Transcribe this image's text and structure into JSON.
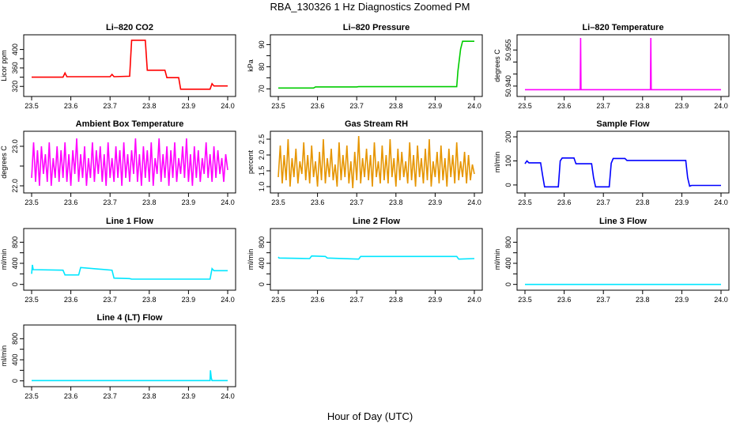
{
  "page": {
    "title": "RBA_130326  1 Hz Diagnostics Zoomed PM",
    "xlabel": "Hour of Day (UTC)"
  },
  "chart_data": [
    {
      "id": "co2",
      "type": "line",
      "title": "Li–820 CO2",
      "ylabel": "Licor ppm",
      "color": "#ff0000",
      "xlim": [
        23.5,
        24.0
      ],
      "ylim": [
        305,
        425
      ],
      "xticks": [
        "23.5",
        "23.6",
        "23.7",
        "23.8",
        "23.9",
        "24.0"
      ],
      "yticks": [
        "320",
        "340",
        "360",
        "380",
        "400"
      ],
      "yticks_shown": [
        "320",
        "360",
        "400"
      ],
      "series": [
        {
          "x": [
            23.5,
            23.58,
            23.585,
            23.59,
            23.7,
            23.705,
            23.71,
            23.75,
            23.755,
            23.79,
            23.795,
            23.84,
            23.845,
            23.875,
            23.88,
            23.955,
            23.96,
            23.965,
            24.0
          ],
          "y": [
            340,
            340,
            349,
            341,
            341,
            346,
            341,
            342,
            420,
            420,
            355,
            355,
            339,
            339,
            314,
            314,
            326,
            321,
            321
          ]
        }
      ]
    },
    {
      "id": "pressure",
      "type": "line",
      "title": "Li–820 Pressure",
      "ylabel": "kPa",
      "color": "#00cc00",
      "xlim": [
        23.5,
        24.0
      ],
      "ylim": [
        68,
        93
      ],
      "xticks": [
        "23.5",
        "23.6",
        "23.7",
        "23.8",
        "23.9",
        "24.0"
      ],
      "yticks": [
        "70",
        "75",
        "80",
        "85",
        "90"
      ],
      "yticks_shown": [
        "70",
        "80",
        "90"
      ],
      "series": [
        {
          "x": [
            23.5,
            23.59,
            23.595,
            23.7,
            23.705,
            23.955,
            23.958,
            23.965,
            23.97,
            24.0
          ],
          "y": [
            70.4,
            70.4,
            70.9,
            70.9,
            71.0,
            71.0,
            78,
            88,
            91.5,
            91.5
          ]
        }
      ]
    },
    {
      "id": "temperature",
      "type": "line",
      "title": "Li–820 Temperature",
      "ylabel": "degrees C",
      "color": "#ff00ff",
      "xlim": [
        23.5,
        24.0
      ],
      "ylim": [
        50.937,
        50.96
      ],
      "xticks": [
        "23.5",
        "23.6",
        "23.7",
        "23.8",
        "23.9",
        "24.0"
      ],
      "yticks": [
        "50.940",
        "50.945",
        "50.950",
        "50.955"
      ],
      "yticks_shown": [
        "50.940",
        "50.955"
      ],
      "series": [
        {
          "x": [
            23.5,
            23.641,
            23.642,
            23.643,
            23.644,
            23.82,
            23.821,
            23.822,
            23.823,
            24.0
          ],
          "y": [
            50.9385,
            50.9385,
            50.96,
            50.9385,
            50.9385,
            50.9385,
            50.96,
            50.9385,
            50.9385,
            50.9385
          ]
        }
      ]
    },
    {
      "id": "ambient",
      "type": "line",
      "title": "Ambient Box Temperature",
      "ylabel": "degrees C",
      "color": "#ff00ff",
      "xlim": [
        23.5,
        24.0
      ],
      "ylim": [
        21.9,
        23.3
      ],
      "xticks": [
        "23.5",
        "23.6",
        "23.7",
        "23.8",
        "23.9",
        "24.0"
      ],
      "yticks": [
        "22.0",
        "22.5",
        "23.0"
      ],
      "yticks_shown": [
        "22.0",
        "23.0"
      ],
      "series": [
        {
          "x": [
            23.5,
            23.505,
            23.51,
            23.515,
            23.52,
            23.525,
            23.53,
            23.535,
            23.54,
            23.545,
            23.55,
            23.555,
            23.56,
            23.565,
            23.57,
            23.575,
            23.58,
            23.585,
            23.59,
            23.595,
            23.6,
            23.605,
            23.61,
            23.615,
            23.62,
            23.625,
            23.63,
            23.635,
            23.64,
            23.645,
            23.65,
            23.655,
            23.66,
            23.665,
            23.67,
            23.675,
            23.68,
            23.685,
            23.69,
            23.695,
            23.7,
            23.705,
            23.71,
            23.715,
            23.72,
            23.725,
            23.73,
            23.735,
            23.74,
            23.745,
            23.75,
            23.755,
            23.76,
            23.765,
            23.77,
            23.775,
            23.78,
            23.785,
            23.79,
            23.795,
            23.8,
            23.805,
            23.81,
            23.815,
            23.82,
            23.825,
            23.83,
            23.835,
            23.84,
            23.845,
            23.85,
            23.855,
            23.86,
            23.865,
            23.87,
            23.875,
            23.88,
            23.885,
            23.89,
            23.895,
            23.9,
            23.905,
            23.91,
            23.915,
            23.92,
            23.925,
            23.93,
            23.935,
            23.94,
            23.945,
            23.95,
            23.955,
            23.96,
            23.965,
            23.97,
            23.975,
            23.98,
            23.985,
            23.99,
            23.995,
            24.0
          ],
          "y": [
            22.2,
            23.1,
            22.1,
            22.9,
            22.0,
            23.0,
            22.3,
            22.8,
            22.1,
            23.1,
            22.0,
            22.7,
            22.2,
            23.0,
            22.1,
            22.9,
            22.2,
            23.1,
            22.1,
            22.8,
            22.0,
            22.9,
            22.3,
            23.2,
            22.1,
            22.8,
            22.2,
            23.0,
            22.0,
            22.7,
            22.2,
            23.1,
            22.1,
            22.9,
            22.3,
            23.0,
            22.1,
            22.8,
            22.0,
            23.1,
            22.2,
            22.7,
            22.1,
            23.0,
            22.2,
            22.9,
            22.0,
            23.1,
            22.2,
            22.8,
            22.1,
            22.9,
            22.3,
            23.2,
            22.1,
            22.8,
            22.0,
            23.0,
            22.2,
            22.9,
            22.1,
            23.1,
            22.0,
            22.7,
            22.3,
            23.2,
            22.1,
            22.8,
            22.2,
            23.0,
            22.0,
            22.9,
            22.2,
            23.1,
            22.1,
            22.7,
            22.3,
            23.0,
            22.2,
            23.2,
            22.1,
            22.8,
            22.0,
            23.0,
            22.2,
            22.9,
            22.1,
            22.7,
            22.3,
            23.1,
            22.2,
            22.8,
            22.1,
            23.0,
            22.2,
            22.9,
            22.3,
            22.7,
            22.1,
            22.8,
            22.4
          ]
        }
      ]
    },
    {
      "id": "rh",
      "type": "line",
      "title": "Gas Stream RH",
      "ylabel": "percent",
      "color": "#e69500",
      "xlim": [
        23.5,
        24.0
      ],
      "ylim": [
        0.9,
        2.65
      ],
      "xticks": [
        "23.5",
        "23.6",
        "23.7",
        "23.8",
        "23.9",
        "24.0"
      ],
      "yticks": [
        "1.0",
        "1.5",
        "2.0",
        "2.5"
      ],
      "yticks_shown": [
        "1.0",
        "1.5",
        "2.0",
        "2.5"
      ],
      "series": [
        {
          "x": [
            23.5,
            23.505,
            23.51,
            23.515,
            23.52,
            23.525,
            23.53,
            23.535,
            23.54,
            23.545,
            23.55,
            23.555,
            23.56,
            23.565,
            23.57,
            23.575,
            23.58,
            23.585,
            23.59,
            23.595,
            23.6,
            23.605,
            23.61,
            23.615,
            23.62,
            23.625,
            23.63,
            23.635,
            23.64,
            23.645,
            23.65,
            23.655,
            23.66,
            23.665,
            23.67,
            23.675,
            23.68,
            23.685,
            23.69,
            23.695,
            23.7,
            23.705,
            23.71,
            23.715,
            23.72,
            23.725,
            23.73,
            23.735,
            23.74,
            23.745,
            23.75,
            23.755,
            23.76,
            23.765,
            23.77,
            23.775,
            23.78,
            23.785,
            23.79,
            23.795,
            23.8,
            23.805,
            23.81,
            23.815,
            23.82,
            23.825,
            23.83,
            23.835,
            23.84,
            23.845,
            23.85,
            23.855,
            23.86,
            23.865,
            23.87,
            23.875,
            23.88,
            23.885,
            23.89,
            23.895,
            23.9,
            23.905,
            23.91,
            23.915,
            23.92,
            23.925,
            23.93,
            23.935,
            23.94,
            23.945,
            23.95,
            23.955,
            23.96,
            23.965,
            23.97,
            23.975,
            23.98,
            23.985,
            23.99,
            23.995,
            24.0
          ],
          "y": [
            1.3,
            2.3,
            1.1,
            2.0,
            1.2,
            2.5,
            1.0,
            1.9,
            1.3,
            2.2,
            1.1,
            1.8,
            1.4,
            2.4,
            1.2,
            2.0,
            1.1,
            2.3,
            1.3,
            1.8,
            1.0,
            2.1,
            1.2,
            2.5,
            1.1,
            1.9,
            1.3,
            2.2,
            1.2,
            1.7,
            1.0,
            2.4,
            1.2,
            2.0,
            1.3,
            2.3,
            1.1,
            1.8,
            0.95,
            2.1,
            1.2,
            2.6,
            1.1,
            1.9,
            1.3,
            2.2,
            1.2,
            2.0,
            1.0,
            2.4,
            1.3,
            1.8,
            1.1,
            2.3,
            1.2,
            2.0,
            1.1,
            2.5,
            1.3,
            1.9,
            1.0,
            2.2,
            1.2,
            2.1,
            1.3,
            1.8,
            1.1,
            2.4,
            1.2,
            2.0,
            1.0,
            2.3,
            1.3,
            1.9,
            1.1,
            2.2,
            1.2,
            2.5,
            1.0,
            1.8,
            1.3,
            2.1,
            1.1,
            2.3,
            1.2,
            1.9,
            1.0,
            2.2,
            1.3,
            2.0,
            1.1,
            2.4,
            1.2,
            1.8,
            1.3,
            2.1,
            1.1,
            2.0,
            1.2,
            1.7,
            1.4
          ]
        }
      ]
    },
    {
      "id": "sampleflow",
      "type": "line",
      "title": "Sample Flow",
      "ylabel": "ml/min",
      "color": "#0000ff",
      "xlim": [
        23.5,
        24.0
      ],
      "ylim": [
        -20,
        210
      ],
      "xticks": [
        "23.5",
        "23.6",
        "23.7",
        "23.8",
        "23.9",
        "24.0"
      ],
      "yticks": [
        "0",
        "100",
        "200"
      ],
      "yticks_shown": [
        "0",
        "100",
        "200"
      ],
      "series": [
        {
          "x": [
            23.5,
            23.505,
            23.51,
            23.54,
            23.545,
            23.55,
            23.585,
            23.59,
            23.595,
            23.625,
            23.63,
            23.67,
            23.675,
            23.68,
            23.715,
            23.72,
            23.725,
            23.755,
            23.76,
            23.91,
            23.915,
            23.92,
            23.925,
            24.0
          ],
          "y": [
            88,
            100,
            92,
            92,
            40,
            -8,
            -8,
            100,
            112,
            112,
            88,
            88,
            30,
            -8,
            -8,
            90,
            110,
            110,
            102,
            102,
            30,
            -5,
            -2,
            -2
          ]
        }
      ]
    },
    {
      "id": "line1",
      "type": "line",
      "title": "Line 1 Flow",
      "ylabel": "ml/min",
      "color": "#00e6ff",
      "xlim": [
        23.5,
        24.0
      ],
      "ylim": [
        -50,
        1000
      ],
      "xticks": [
        "23.5",
        "23.6",
        "23.7",
        "23.8",
        "23.9",
        "24.0"
      ],
      "yticks": [
        "0",
        "200",
        "400",
        "600",
        "800"
      ],
      "yticks_shown": [
        "0",
        "400",
        "800"
      ],
      "series": [
        {
          "x": [
            23.5,
            23.502,
            23.504,
            23.58,
            23.585,
            23.62,
            23.625,
            23.705,
            23.71,
            23.75,
            23.755,
            23.955,
            23.96,
            23.965,
            24.0
          ],
          "y": [
            200,
            370,
            280,
            270,
            180,
            180,
            320,
            270,
            120,
            110,
            100,
            100,
            300,
            260,
            260
          ]
        }
      ]
    },
    {
      "id": "line2",
      "type": "line",
      "title": "Line 2 Flow",
      "ylabel": "ml/min",
      "color": "#00e6ff",
      "xlim": [
        23.5,
        24.0
      ],
      "ylim": [
        -50,
        1000
      ],
      "xticks": [
        "23.5",
        "23.6",
        "23.7",
        "23.8",
        "23.9",
        "24.0"
      ],
      "yticks": [
        "0",
        "200",
        "400",
        "600",
        "800"
      ],
      "yticks_shown": [
        "0",
        "400",
        "800"
      ],
      "series": [
        {
          "x": [
            23.5,
            23.502,
            23.58,
            23.585,
            23.62,
            23.625,
            23.705,
            23.71,
            23.75,
            23.755,
            23.955,
            23.96,
            24.0
          ],
          "y": [
            520,
            500,
            490,
            540,
            530,
            500,
            480,
            530,
            530,
            530,
            530,
            480,
            490
          ]
        }
      ]
    },
    {
      "id": "line3",
      "type": "line",
      "title": "Line 3 Flow",
      "ylabel": "ml/min",
      "color": "#00e6ff",
      "xlim": [
        23.5,
        24.0
      ],
      "ylim": [
        -50,
        1000
      ],
      "xticks": [
        "23.5",
        "23.6",
        "23.7",
        "23.8",
        "23.9",
        "24.0"
      ],
      "yticks": [
        "0",
        "200",
        "400",
        "600",
        "800"
      ],
      "yticks_shown": [
        "0",
        "400",
        "800"
      ],
      "series": [
        {
          "x": [
            23.5,
            24.0
          ],
          "y": [
            0,
            0
          ]
        }
      ]
    },
    {
      "id": "line4",
      "type": "line",
      "title": "Line 4 (LT) Flow",
      "ylabel": "ml/min",
      "color": "#00e6ff",
      "xlim": [
        23.5,
        24.0
      ],
      "ylim": [
        -50,
        1000
      ],
      "xticks": [
        "23.5",
        "23.6",
        "23.7",
        "23.8",
        "23.9",
        "24.0"
      ],
      "yticks": [
        "0",
        "200",
        "400",
        "600",
        "800"
      ],
      "yticks_shown": [
        "0",
        "400",
        "800"
      ],
      "series": [
        {
          "x": [
            23.5,
            23.955,
            23.956,
            23.958,
            23.96,
            24.0
          ],
          "y": [
            5,
            5,
            200,
            60,
            5,
            5
          ]
        }
      ]
    }
  ]
}
